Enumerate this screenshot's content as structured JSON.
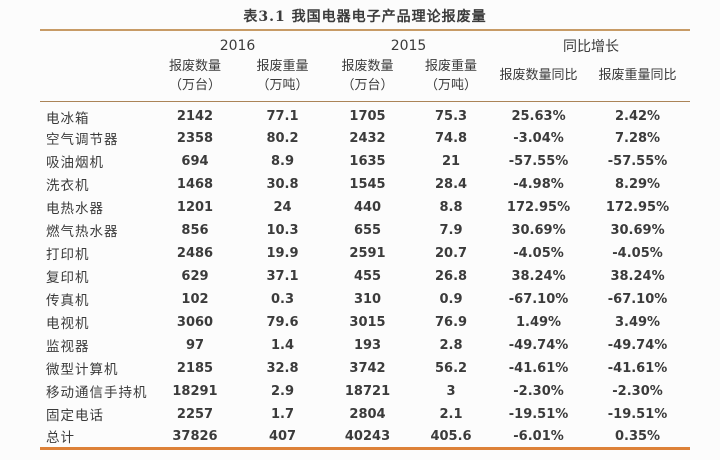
{
  "title": "表3.1 我国电器电子产品理论报废量",
  "colors": {
    "rule_top": "#c79b66",
    "rule_header": "#ab8457",
    "rule_bottom": "#dd8138",
    "text": "#3b3b3b",
    "bg": "#fcfcfc"
  },
  "table": {
    "year_groups": [
      "2016",
      "2015",
      "同比增长"
    ],
    "sub_headers": [
      {
        "line1": "报废数量",
        "line2": "（万台）"
      },
      {
        "line1": "报废重量",
        "line2": "（万吨）"
      },
      {
        "line1": "报废数量",
        "line2": "（万台）"
      },
      {
        "line1": "报废重量",
        "line2": "（万吨）"
      },
      {
        "line1": "报废数量同比",
        "line2": ""
      },
      {
        "line1": "报废重量同比",
        "line2": ""
      }
    ],
    "rows": [
      {
        "name": "电冰箱",
        "values": [
          "2142",
          "77.1",
          "1705",
          "75.3",
          "25.63%",
          "2.42%"
        ]
      },
      {
        "name": "空气调节器",
        "values": [
          "2358",
          "80.2",
          "2432",
          "74.8",
          "-3.04%",
          "7.28%"
        ]
      },
      {
        "name": "吸油烟机",
        "values": [
          "694",
          "8.9",
          "1635",
          "21",
          "-57.55%",
          "-57.55%"
        ]
      },
      {
        "name": "洗衣机",
        "values": [
          "1468",
          "30.8",
          "1545",
          "28.4",
          "-4.98%",
          "8.29%"
        ]
      },
      {
        "name": "电热水器",
        "values": [
          "1201",
          "24",
          "440",
          "8.8",
          "172.95%",
          "172.95%"
        ]
      },
      {
        "name": "燃气热水器",
        "values": [
          "856",
          "10.3",
          "655",
          "7.9",
          "30.69%",
          "30.69%"
        ]
      },
      {
        "name": "打印机",
        "values": [
          "2486",
          "19.9",
          "2591",
          "20.7",
          "-4.05%",
          "-4.05%"
        ]
      },
      {
        "name": "复印机",
        "values": [
          "629",
          "37.1",
          "455",
          "26.8",
          "38.24%",
          "38.24%"
        ]
      },
      {
        "name": "传真机",
        "values": [
          "102",
          "0.3",
          "310",
          "0.9",
          "-67.10%",
          "-67.10%"
        ]
      },
      {
        "name": "电视机",
        "values": [
          "3060",
          "79.6",
          "3015",
          "76.9",
          "1.49%",
          "3.49%"
        ]
      },
      {
        "name": "监视器",
        "values": [
          "97",
          "1.4",
          "193",
          "2.8",
          "-49.74%",
          "-49.74%"
        ]
      },
      {
        "name": "微型计算机",
        "values": [
          "2185",
          "32.8",
          "3742",
          "56.2",
          "-41.61%",
          "-41.61%"
        ]
      },
      {
        "name": "移动通信手持机",
        "values": [
          "18291",
          "2.9",
          "18721",
          "3",
          "-2.30%",
          "-2.30%"
        ]
      },
      {
        "name": "固定电话",
        "values": [
          "2257",
          "1.7",
          "2804",
          "2.1",
          "-19.51%",
          "-19.51%"
        ]
      },
      {
        "name": "总计",
        "values": [
          "37826",
          "407",
          "40243",
          "405.6",
          "-6.01%",
          "0.35%"
        ]
      }
    ]
  }
}
